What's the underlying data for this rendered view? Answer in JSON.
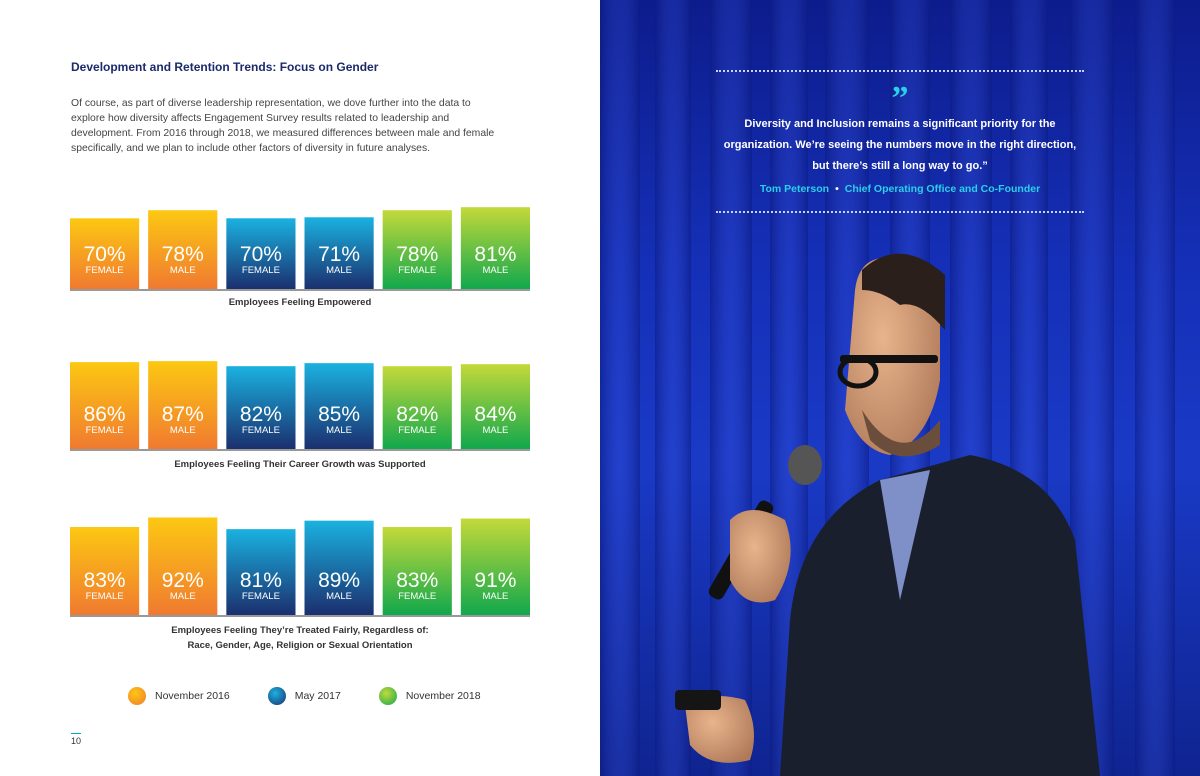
{
  "heading": "Development and Retention Trends: Focus on Gender",
  "intro": "Of course, as part of diverse leadership representation, we dove further into the data to explore how diversity affects Engagement Survey results related to leadership and development. From 2016 through 2018, we measured differences between male and female specifically, and we plan to include other factors of diversity in future analyses.",
  "page_number": "10",
  "colors": {
    "november_2016": [
      "#fcc812",
      "#f07a30"
    ],
    "may_2017": [
      "#1ab2e0",
      "#1b2f6e"
    ],
    "november_2018": [
      "#c3d93a",
      "#11a84c"
    ]
  },
  "legend": [
    {
      "label": "November 2016",
      "color_key": "november_2016"
    },
    {
      "label": "May 2017",
      "color_key": "may_2017"
    },
    {
      "label": "November 2018",
      "color_key": "november_2018"
    }
  ],
  "chart_data": [
    {
      "type": "bar",
      "title": "Employees Feeling Empowered",
      "categories": [
        "FEMALE",
        "MALE",
        "FEMALE",
        "MALE",
        "FEMALE",
        "MALE"
      ],
      "groups": [
        "November 2016",
        "November 2016",
        "May 2017",
        "May 2017",
        "November 2018",
        "November 2018"
      ],
      "values": [
        70,
        78,
        70,
        71,
        78,
        81
      ],
      "labels": [
        "70%",
        "78%",
        "70%",
        "71%",
        "78%",
        "81%"
      ],
      "ylim": [
        0,
        100
      ]
    },
    {
      "type": "bar",
      "title": "Employees Feeling Their Career Growth was Supported",
      "categories": [
        "FEMALE",
        "MALE",
        "FEMALE",
        "MALE",
        "FEMALE",
        "MALE"
      ],
      "groups": [
        "November 2016",
        "November 2016",
        "May 2017",
        "May 2017",
        "November 2018",
        "November 2018"
      ],
      "values": [
        86,
        87,
        82,
        85,
        82,
        84
      ],
      "labels": [
        "86%",
        "87%",
        "82%",
        "85%",
        "82%",
        "84%"
      ],
      "ylim": [
        0,
        100
      ]
    },
    {
      "type": "bar",
      "title": "Employees Feeling They’re Treated Fairly, Regardless of:",
      "title_line2": "Race, Gender, Age, Religion or Sexual Orientation",
      "categories": [
        "FEMALE",
        "MALE",
        "FEMALE",
        "MALE",
        "FEMALE",
        "MALE"
      ],
      "groups": [
        "November 2016",
        "November 2016",
        "May 2017",
        "May 2017",
        "November 2018",
        "November 2018"
      ],
      "values": [
        83,
        92,
        81,
        89,
        83,
        91
      ],
      "labels": [
        "83%",
        "92%",
        "81%",
        "89%",
        "83%",
        "91%"
      ],
      "ylim": [
        0,
        100
      ]
    }
  ],
  "quote": {
    "mark": "”",
    "text": "Diversity and Inclusion remains a significant priority for the organization. We’re seeing the numbers move in the right direction, but there’s still a long way to go.”",
    "author": "Tom Peterson",
    "separator": "•",
    "role": "Chief Operating Office and Co-Founder"
  }
}
